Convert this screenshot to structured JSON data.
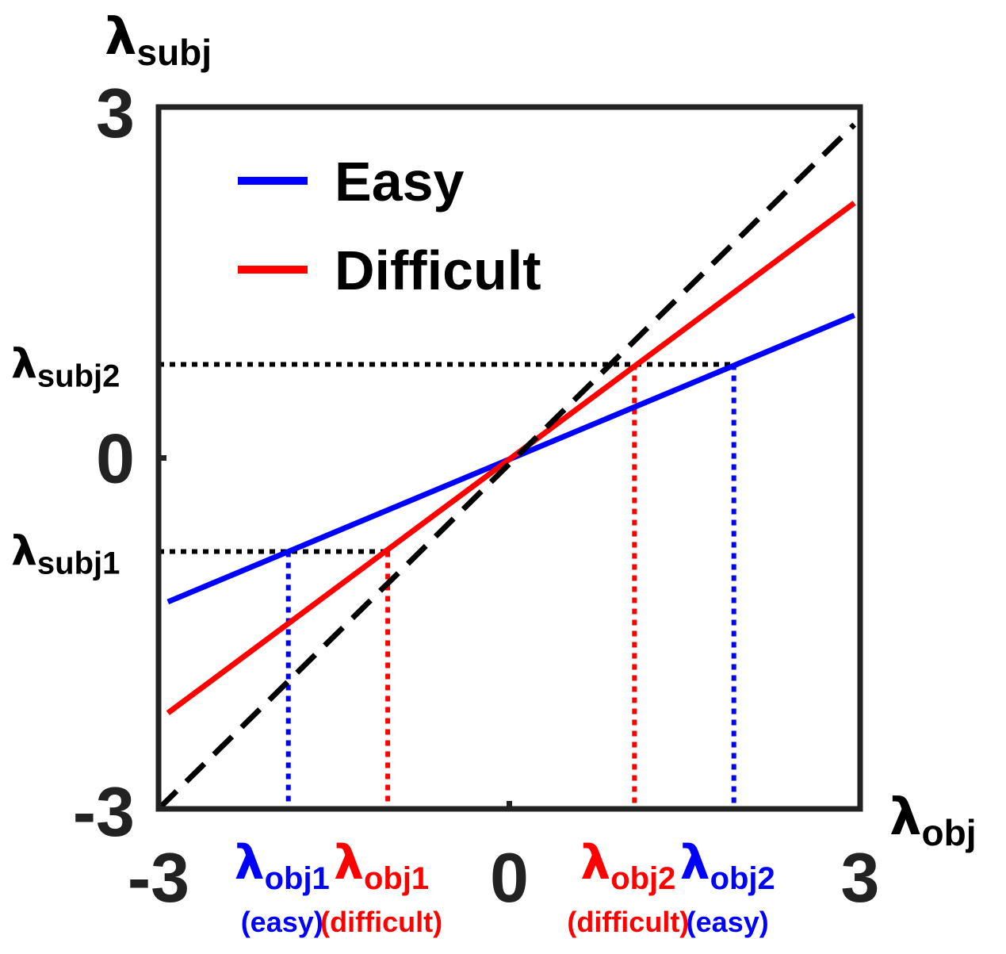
{
  "chart_data": {
    "type": "line",
    "xlabel": {
      "sym": "λ",
      "sub": "obj"
    },
    "ylabel": {
      "sym": "λ",
      "sub": "subj"
    },
    "xlim": [
      -3,
      3
    ],
    "ylim": [
      -3,
      3
    ],
    "x_ticks": [
      {
        "value": -3,
        "label": "-3"
      },
      {
        "value": 0,
        "label": "0"
      },
      {
        "value": 3,
        "label": "3"
      }
    ],
    "y_ticks": [
      {
        "value": -3,
        "label": "-3"
      },
      {
        "value": 0,
        "label": "0"
      },
      {
        "value": 3,
        "label": "3"
      }
    ],
    "colors": {
      "easy": "#0000ff",
      "difficult": "#ff0000",
      "identity": "#000000",
      "axis": "#222222"
    },
    "series": [
      {
        "name": "Easy",
        "color": "#0000ff",
        "x": [
          -2.92,
          2.95
        ],
        "y": [
          -1.23,
          1.22
        ]
      },
      {
        "name": "Difficult",
        "color": "#ff0000",
        "x": [
          -2.92,
          2.95
        ],
        "y": [
          -2.18,
          2.18
        ]
      },
      {
        "color": "#000000",
        "dashed": true,
        "x": [
          -3.0,
          2.95
        ],
        "y": [
          -3.0,
          2.85
        ]
      }
    ],
    "reference_levels": {
      "y": [
        {
          "value": 0.8,
          "sym": "λ",
          "sub": "subj2",
          "x_end": 1.92
        },
        {
          "value": -0.8,
          "sym": "λ",
          "sub": "subj1",
          "x_end": -1.04
        }
      ],
      "x": [
        {
          "value": -1.89,
          "y_top": -0.8,
          "color": "#0000ff",
          "sym": "λ",
          "sub": "obj1",
          "note": "(easy)"
        },
        {
          "value": -1.04,
          "y_top": -0.8,
          "color": "#ff0000",
          "sym": "λ",
          "sub": "obj1",
          "note": "(difficult)"
        },
        {
          "value": 1.07,
          "y_top": 0.8,
          "color": "#ff0000",
          "sym": "λ",
          "sub": "obj2",
          "note": "(difficult)"
        },
        {
          "value": 1.92,
          "y_top": 0.8,
          "color": "#0000ff",
          "sym": "λ",
          "sub": "obj2",
          "note": "(easy)"
        }
      ]
    },
    "legend": {
      "position": "top-left",
      "entries": [
        "Easy",
        "Difficult"
      ]
    }
  }
}
